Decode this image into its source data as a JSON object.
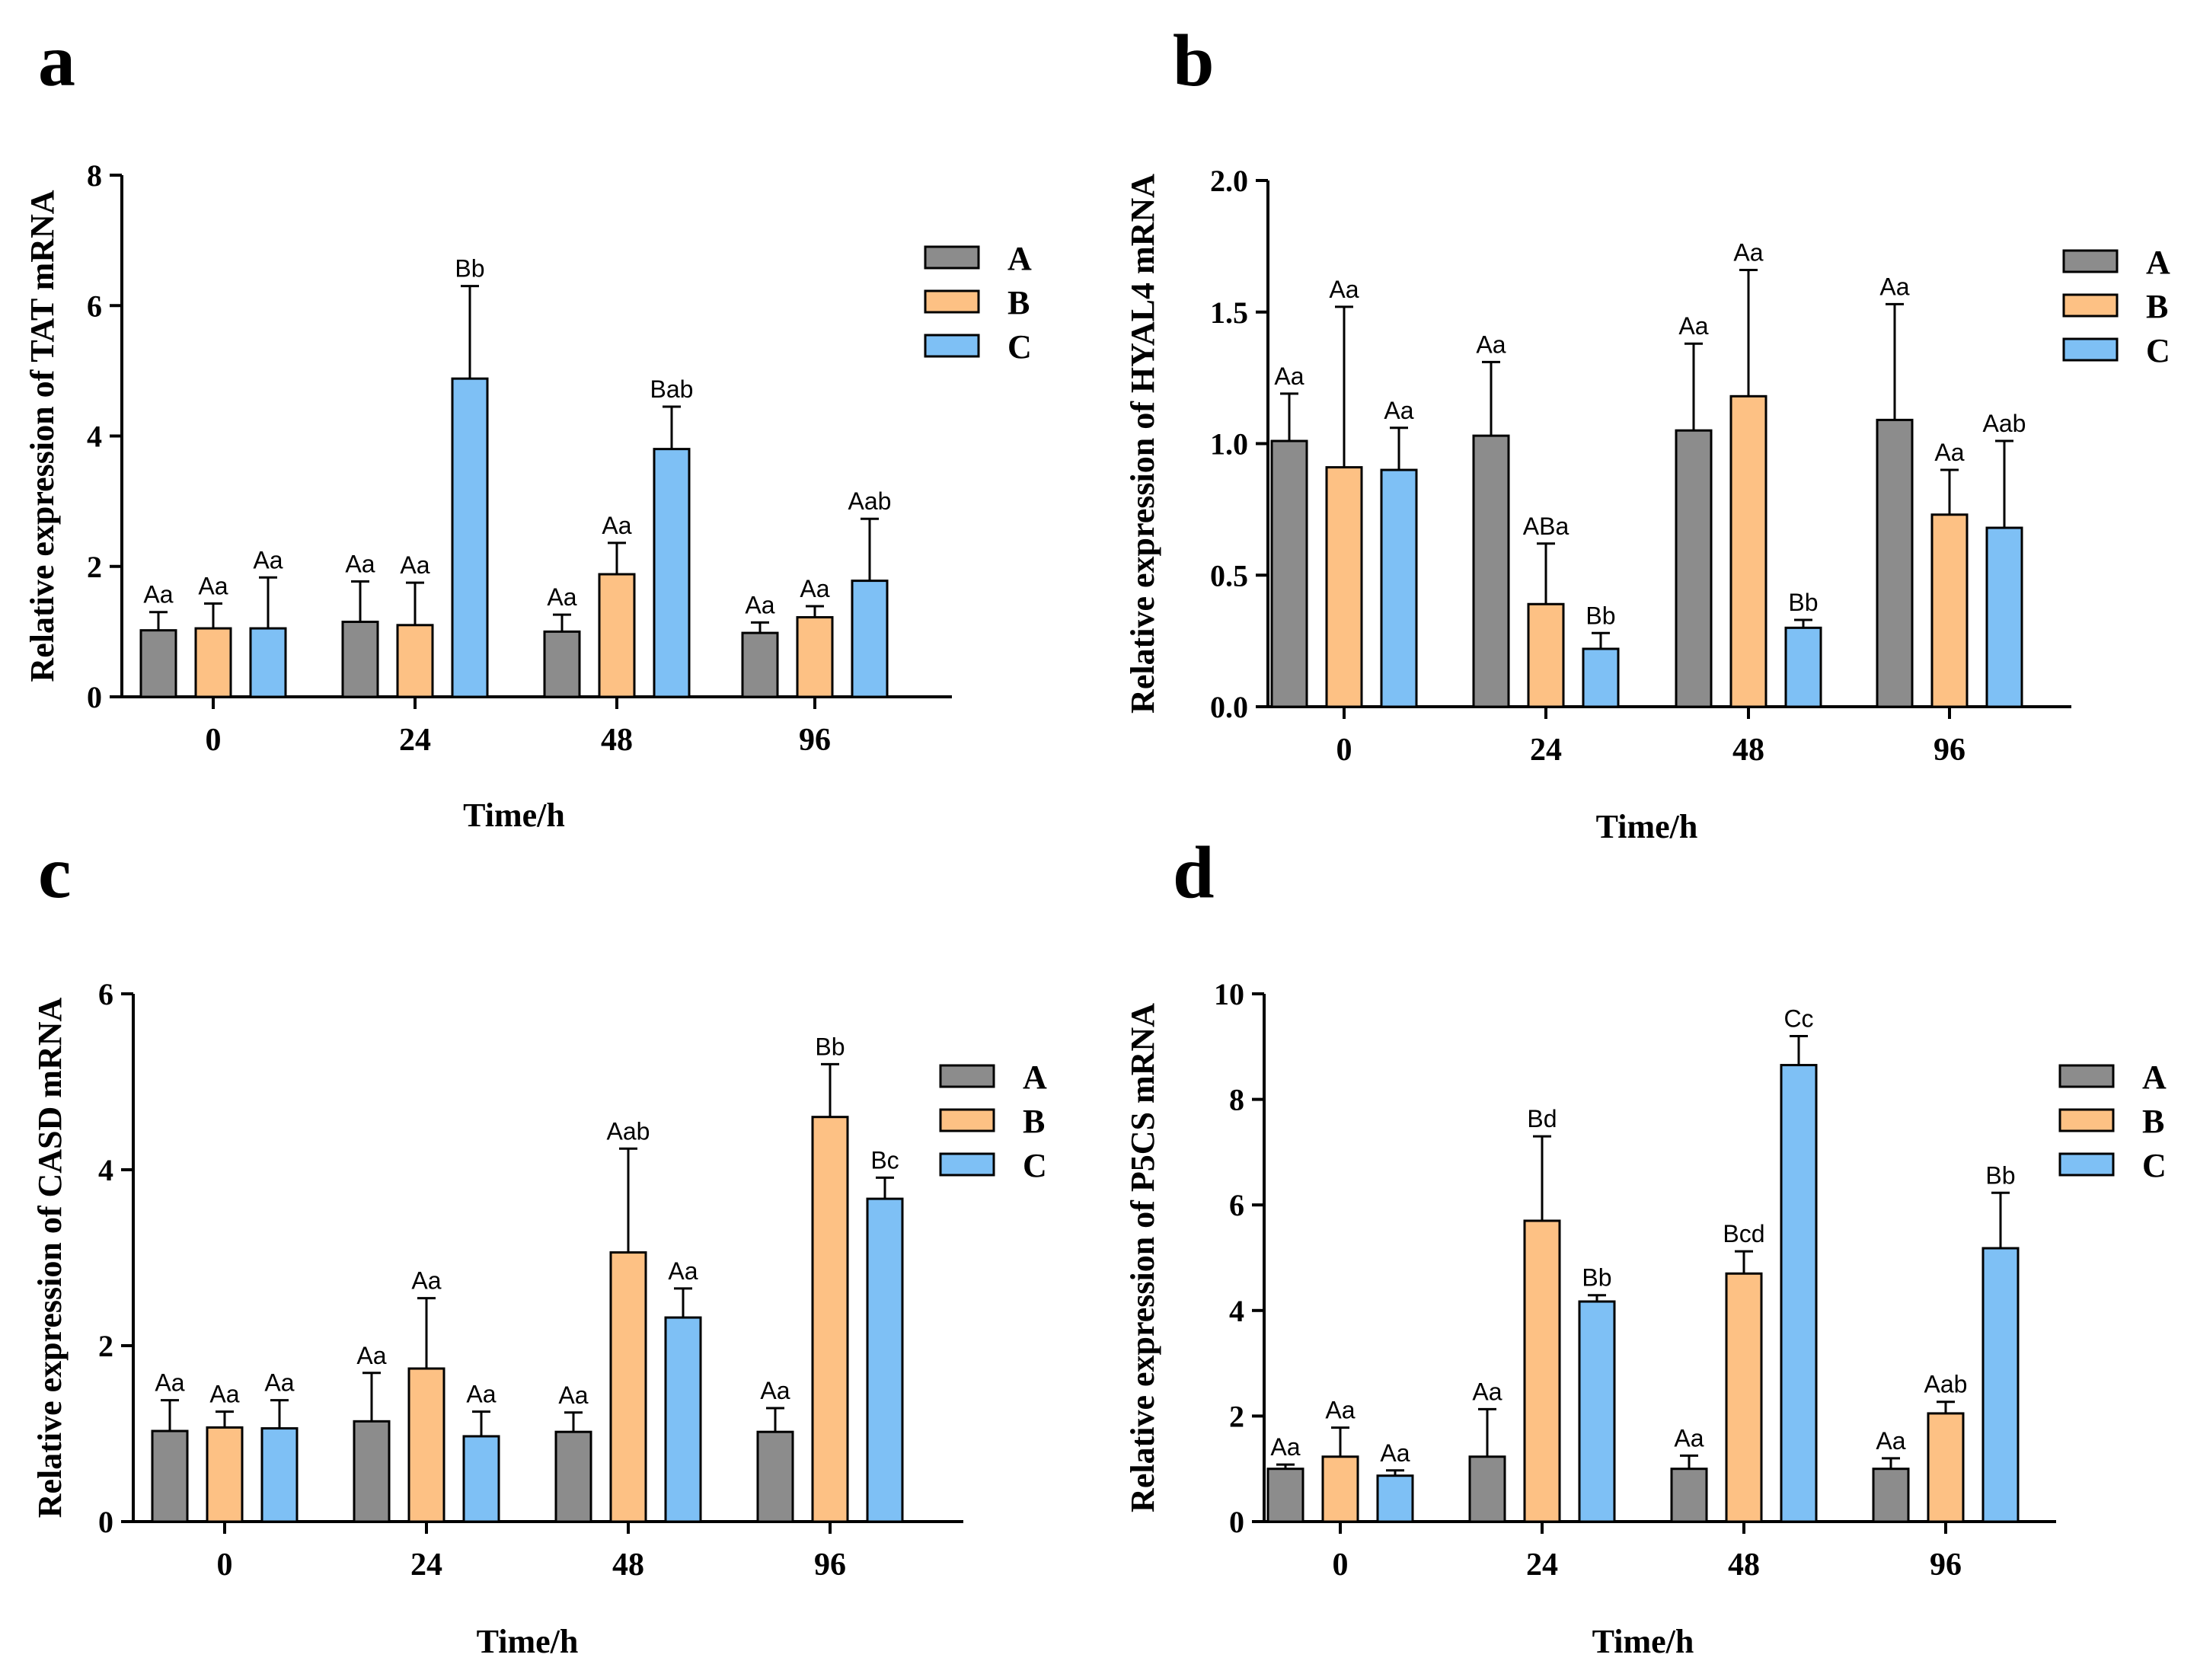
{
  "colors": {
    "A": "#8c8c8c",
    "B": "#fdc184",
    "C": "#7ec0f5",
    "stroke": "#000000"
  },
  "chart_data": [
    {
      "panel": "a",
      "type": "bar",
      "categories": [
        "0",
        "24",
        "48",
        "96"
      ],
      "xlabel": "Time/h",
      "ylabel": "Relative expression of TAT mRNA",
      "ylim": [
        0,
        8
      ],
      "yticks": [
        "0",
        "2",
        "4",
        "6",
        "8"
      ],
      "legend": [
        "A",
        "B",
        "C"
      ],
      "legend_position": "top-right",
      "series": [
        {
          "name": "A",
          "values": [
            1.02,
            1.15,
            1.0,
            0.98
          ],
          "errors": [
            0.28,
            0.62,
            0.26,
            0.16
          ],
          "labels": [
            "Aa",
            "Aa",
            "Aa",
            "Aa"
          ]
        },
        {
          "name": "B",
          "values": [
            1.05,
            1.1,
            1.88,
            1.22
          ],
          "errors": [
            0.38,
            0.65,
            0.48,
            0.17
          ],
          "labels": [
            "Aa",
            "Aa",
            "Aa",
            "Aa"
          ]
        },
        {
          "name": "C",
          "values": [
            1.05,
            4.88,
            3.8,
            1.78
          ],
          "errors": [
            0.78,
            1.42,
            0.65,
            0.95
          ],
          "labels": [
            "Aa",
            "Bb",
            "Bab",
            "Aab"
          ]
        }
      ]
    },
    {
      "panel": "b",
      "type": "bar",
      "categories": [
        "0",
        "24",
        "48",
        "96"
      ],
      "xlabel": "Time/h",
      "ylabel": "Relative expression of HYAL4 mRNA",
      "ylim": [
        0,
        2
      ],
      "yticks": [
        "0.0",
        "0.5",
        "1.0",
        "1.5",
        "2.0"
      ],
      "legend": [
        "A",
        "B",
        "C"
      ],
      "legend_position": "top-right",
      "series": [
        {
          "name": "A",
          "values": [
            1.01,
            1.03,
            1.05,
            1.09
          ],
          "errors": [
            0.18,
            0.28,
            0.33,
            0.44
          ],
          "labels": [
            "Aa",
            "Aa",
            "Aa",
            "Aa"
          ]
        },
        {
          "name": "B",
          "values": [
            0.91,
            0.39,
            1.18,
            0.73
          ],
          "errors": [
            0.61,
            0.23,
            0.48,
            0.17
          ],
          "labels": [
            "Aa",
            "ABa",
            "Aa",
            "Aa"
          ]
        },
        {
          "name": "C",
          "values": [
            0.9,
            0.22,
            0.3,
            0.68
          ],
          "errors": [
            0.16,
            0.06,
            0.03,
            0.33
          ],
          "labels": [
            "Aa",
            "Bb",
            "Bb",
            "Aab"
          ]
        }
      ]
    },
    {
      "panel": "c",
      "type": "bar",
      "categories": [
        "0",
        "24",
        "48",
        "96"
      ],
      "xlabel": "Time/h",
      "ylabel": "Relative expression of CASD mRNA",
      "ylim": [
        0,
        6
      ],
      "yticks": [
        "0",
        "2",
        "4",
        "6"
      ],
      "legend": [
        "A",
        "B",
        "C"
      ],
      "legend_position": "top-right",
      "series": [
        {
          "name": "A",
          "values": [
            1.03,
            1.14,
            1.02,
            1.02
          ],
          "errors": [
            0.35,
            0.55,
            0.22,
            0.27
          ],
          "labels": [
            "Aa",
            "Aa",
            "Aa",
            "Aa"
          ]
        },
        {
          "name": "B",
          "values": [
            1.07,
            1.74,
            3.06,
            4.6
          ],
          "errors": [
            0.18,
            0.8,
            1.18,
            0.6
          ],
          "labels": [
            "Aa",
            "Aa",
            "Aab",
            "Bb"
          ]
        },
        {
          "name": "C",
          "values": [
            1.06,
            0.97,
            2.32,
            3.67
          ],
          "errors": [
            0.32,
            0.28,
            0.33,
            0.24
          ],
          "labels": [
            "Aa",
            "Aa",
            "Aa",
            "Bc"
          ]
        }
      ]
    },
    {
      "panel": "d",
      "type": "bar",
      "categories": [
        "0",
        "24",
        "48",
        "96"
      ],
      "xlabel": "Time/h",
      "ylabel": "Relative expression of P5CS mRNA",
      "ylim": [
        0,
        10
      ],
      "yticks": [
        "0",
        "2",
        "4",
        "6",
        "8",
        "10"
      ],
      "legend": [
        "A",
        "B",
        "C"
      ],
      "legend_position": "top-right",
      "series": [
        {
          "name": "A",
          "values": [
            1.0,
            1.23,
            1.0,
            1.0
          ],
          "errors": [
            0.08,
            0.9,
            0.25,
            0.2
          ],
          "labels": [
            "Aa",
            "Aa",
            "Aa",
            "Aa"
          ]
        },
        {
          "name": "B",
          "values": [
            1.23,
            5.7,
            4.7,
            2.05
          ],
          "errors": [
            0.55,
            1.6,
            0.42,
            0.22
          ],
          "labels": [
            "Aa",
            "Bd",
            "Bcd",
            "Aab"
          ]
        },
        {
          "name": "C",
          "values": [
            0.87,
            4.17,
            8.65,
            5.18
          ],
          "errors": [
            0.1,
            0.12,
            0.55,
            1.05
          ],
          "labels": [
            "Aa",
            "Bb",
            "Cc",
            "Bb"
          ]
        }
      ]
    }
  ]
}
